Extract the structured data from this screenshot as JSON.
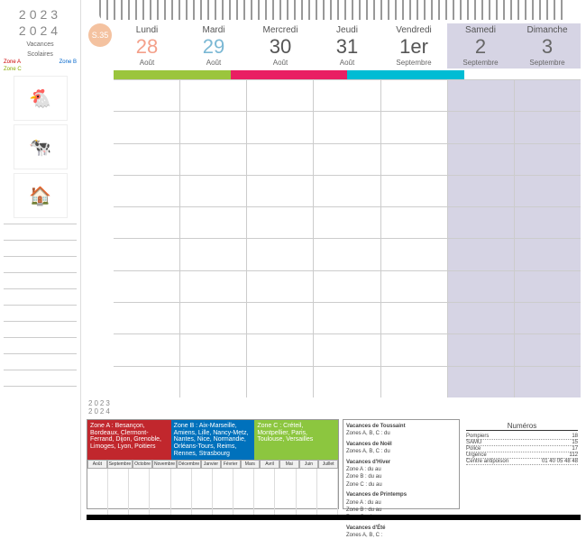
{
  "year1": "2023",
  "year2": "2024",
  "vacances_label": "Vacances",
  "scolaires_label": "Scolaires",
  "zones": {
    "a": "Zone A",
    "b": "Zone B",
    "c": "Zone C"
  },
  "week_num": "S.35",
  "days": [
    {
      "name": "Lundi",
      "num": "28",
      "month": "Août",
      "color": "#f4a08a",
      "weekend": false
    },
    {
      "name": "Mardi",
      "num": "29",
      "month": "Août",
      "color": "#7bb8d4",
      "weekend": false
    },
    {
      "name": "Mercredi",
      "num": "30",
      "month": "Août",
      "color": "#555",
      "weekend": false
    },
    {
      "name": "Jeudi",
      "num": "31",
      "month": "Août",
      "color": "#555",
      "weekend": false
    },
    {
      "name": "Vendredi",
      "num": "1er",
      "month": "Septembre",
      "color": "#555",
      "weekend": false
    },
    {
      "name": "Samedi",
      "num": "2",
      "month": "Septembre",
      "color": "#666",
      "weekend": true
    },
    {
      "name": "Dimanche",
      "num": "3",
      "month": "Septembre",
      "color": "#666",
      "weekend": true
    }
  ],
  "stripe_colors": [
    "#9bc53d",
    "#e91e63",
    "#00bcd4",
    "#ffffff"
  ],
  "grid_rows": 10,
  "sidebar_icons": [
    "🐔",
    "🐄",
    "🏠"
  ],
  "sidebar_lines": 10,
  "zone_descriptions": {
    "a": "Zone A : Besançon, Bordeaux, Clermont-Ferrand, Dijon, Grenoble, Limoges, Lyon, Poitiers",
    "b": "Zone B : Aix-Marseille, Amiens, Lille, Nancy-Metz, Nantes, Nice, Normandie, Orléans-Tours, Reims, Rennes, Strasbourg",
    "c": "Zone C : Créteil, Montpellier, Paris, Toulouse, Versailles"
  },
  "months": [
    "Août",
    "Septembre",
    "Octobre",
    "Novembre",
    "Décembre",
    "Janvier",
    "Février",
    "Mars",
    "Avril",
    "Mai",
    "Juin",
    "Juillet"
  ],
  "vacances": [
    {
      "title": "Vacances de Toussaint",
      "detail": "Zones A, B, C : du"
    },
    {
      "title": "Vacances de Noël",
      "detail": "Zones A, B, C : du"
    },
    {
      "title": "Vacances d'Hiver",
      "detail": "Zone A : du    au\nZone B : du    au\nZone C : du    au"
    },
    {
      "title": "Vacances de Printemps",
      "detail": "Zone A : du    au\nZone B : du    au\nZone C : du    au"
    },
    {
      "title": "Vacances d'Été",
      "detail": "Zones A, B, C :"
    }
  ],
  "numeros_title": "Numéros",
  "numeros": [
    {
      "label": "Pompiers",
      "num": "18"
    },
    {
      "label": "SAMU",
      "num": "15"
    },
    {
      "label": "Police",
      "num": "17"
    },
    {
      "label": "Urgence",
      "num": "112"
    },
    {
      "label": "Centre antipoison",
      "num": "01 40 05 48 48"
    }
  ]
}
